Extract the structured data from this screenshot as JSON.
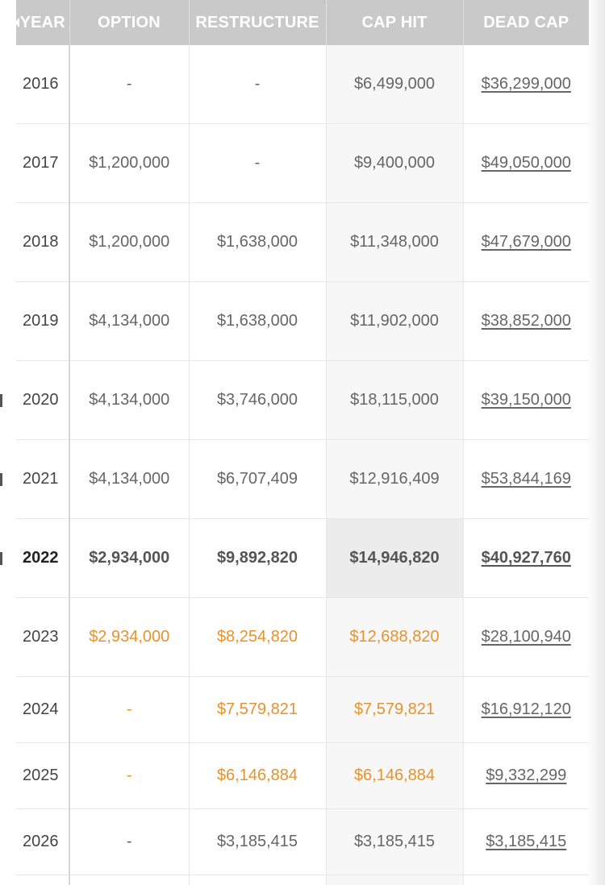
{
  "table": {
    "headers": {
      "year": "YEAR",
      "option": "OPTION",
      "restructure": "RESTRUCTURE",
      "cap_hit": "CAP HIT",
      "dead_cap": "DEAD CAP"
    },
    "rows": [
      {
        "year": "2016",
        "option": "-",
        "restructure": "-",
        "cap_hit": "$6,499,000",
        "dead_cap": "$36,299,000"
      },
      {
        "year": "2017",
        "option": "$1,200,000",
        "restructure": "-",
        "cap_hit": "$9,400,000",
        "dead_cap": "$49,050,000"
      },
      {
        "year": "2018",
        "option": "$1,200,000",
        "restructure": "$1,638,000",
        "cap_hit": "$11,348,000",
        "dead_cap": "$47,679,000"
      },
      {
        "year": "2019",
        "option": "$4,134,000",
        "restructure": "$1,638,000",
        "cap_hit": "$11,902,000",
        "dead_cap": "$38,852,000"
      },
      {
        "year": "2020",
        "option": "$4,134,000",
        "restructure": "$3,746,000",
        "cap_hit": "$18,115,000",
        "dead_cap": "$39,150,000"
      },
      {
        "year": "2021",
        "option": "$4,134,000",
        "restructure": "$6,707,409",
        "cap_hit": "$12,916,409",
        "dead_cap": "$53,844,169"
      },
      {
        "year": "2022",
        "option": "$2,934,000",
        "restructure": "$9,892,820",
        "cap_hit": "$14,946,820",
        "dead_cap": "$40,927,760"
      },
      {
        "year": "2023",
        "option": "$2,934,000",
        "restructure": "$8,254,820",
        "cap_hit": "$12,688,820",
        "dead_cap": "$28,100,940"
      },
      {
        "year": "2024",
        "option": "-",
        "restructure": "$7,579,821",
        "cap_hit": "$7,579,821",
        "dead_cap": "$16,912,120"
      },
      {
        "year": "2025",
        "option": "-",
        "restructure": "$6,146,884",
        "cap_hit": "$6,146,884",
        "dead_cap": "$9,332,299"
      },
      {
        "year": "2026",
        "option": "-",
        "restructure": "$3,185,415",
        "cap_hit": "$3,185,415",
        "dead_cap": "$3,185,415"
      }
    ]
  },
  "colors": {
    "header_bg": "#c9c9c9",
    "future_accent": "#e8922e",
    "current_cap_bg": "#ececec"
  }
}
